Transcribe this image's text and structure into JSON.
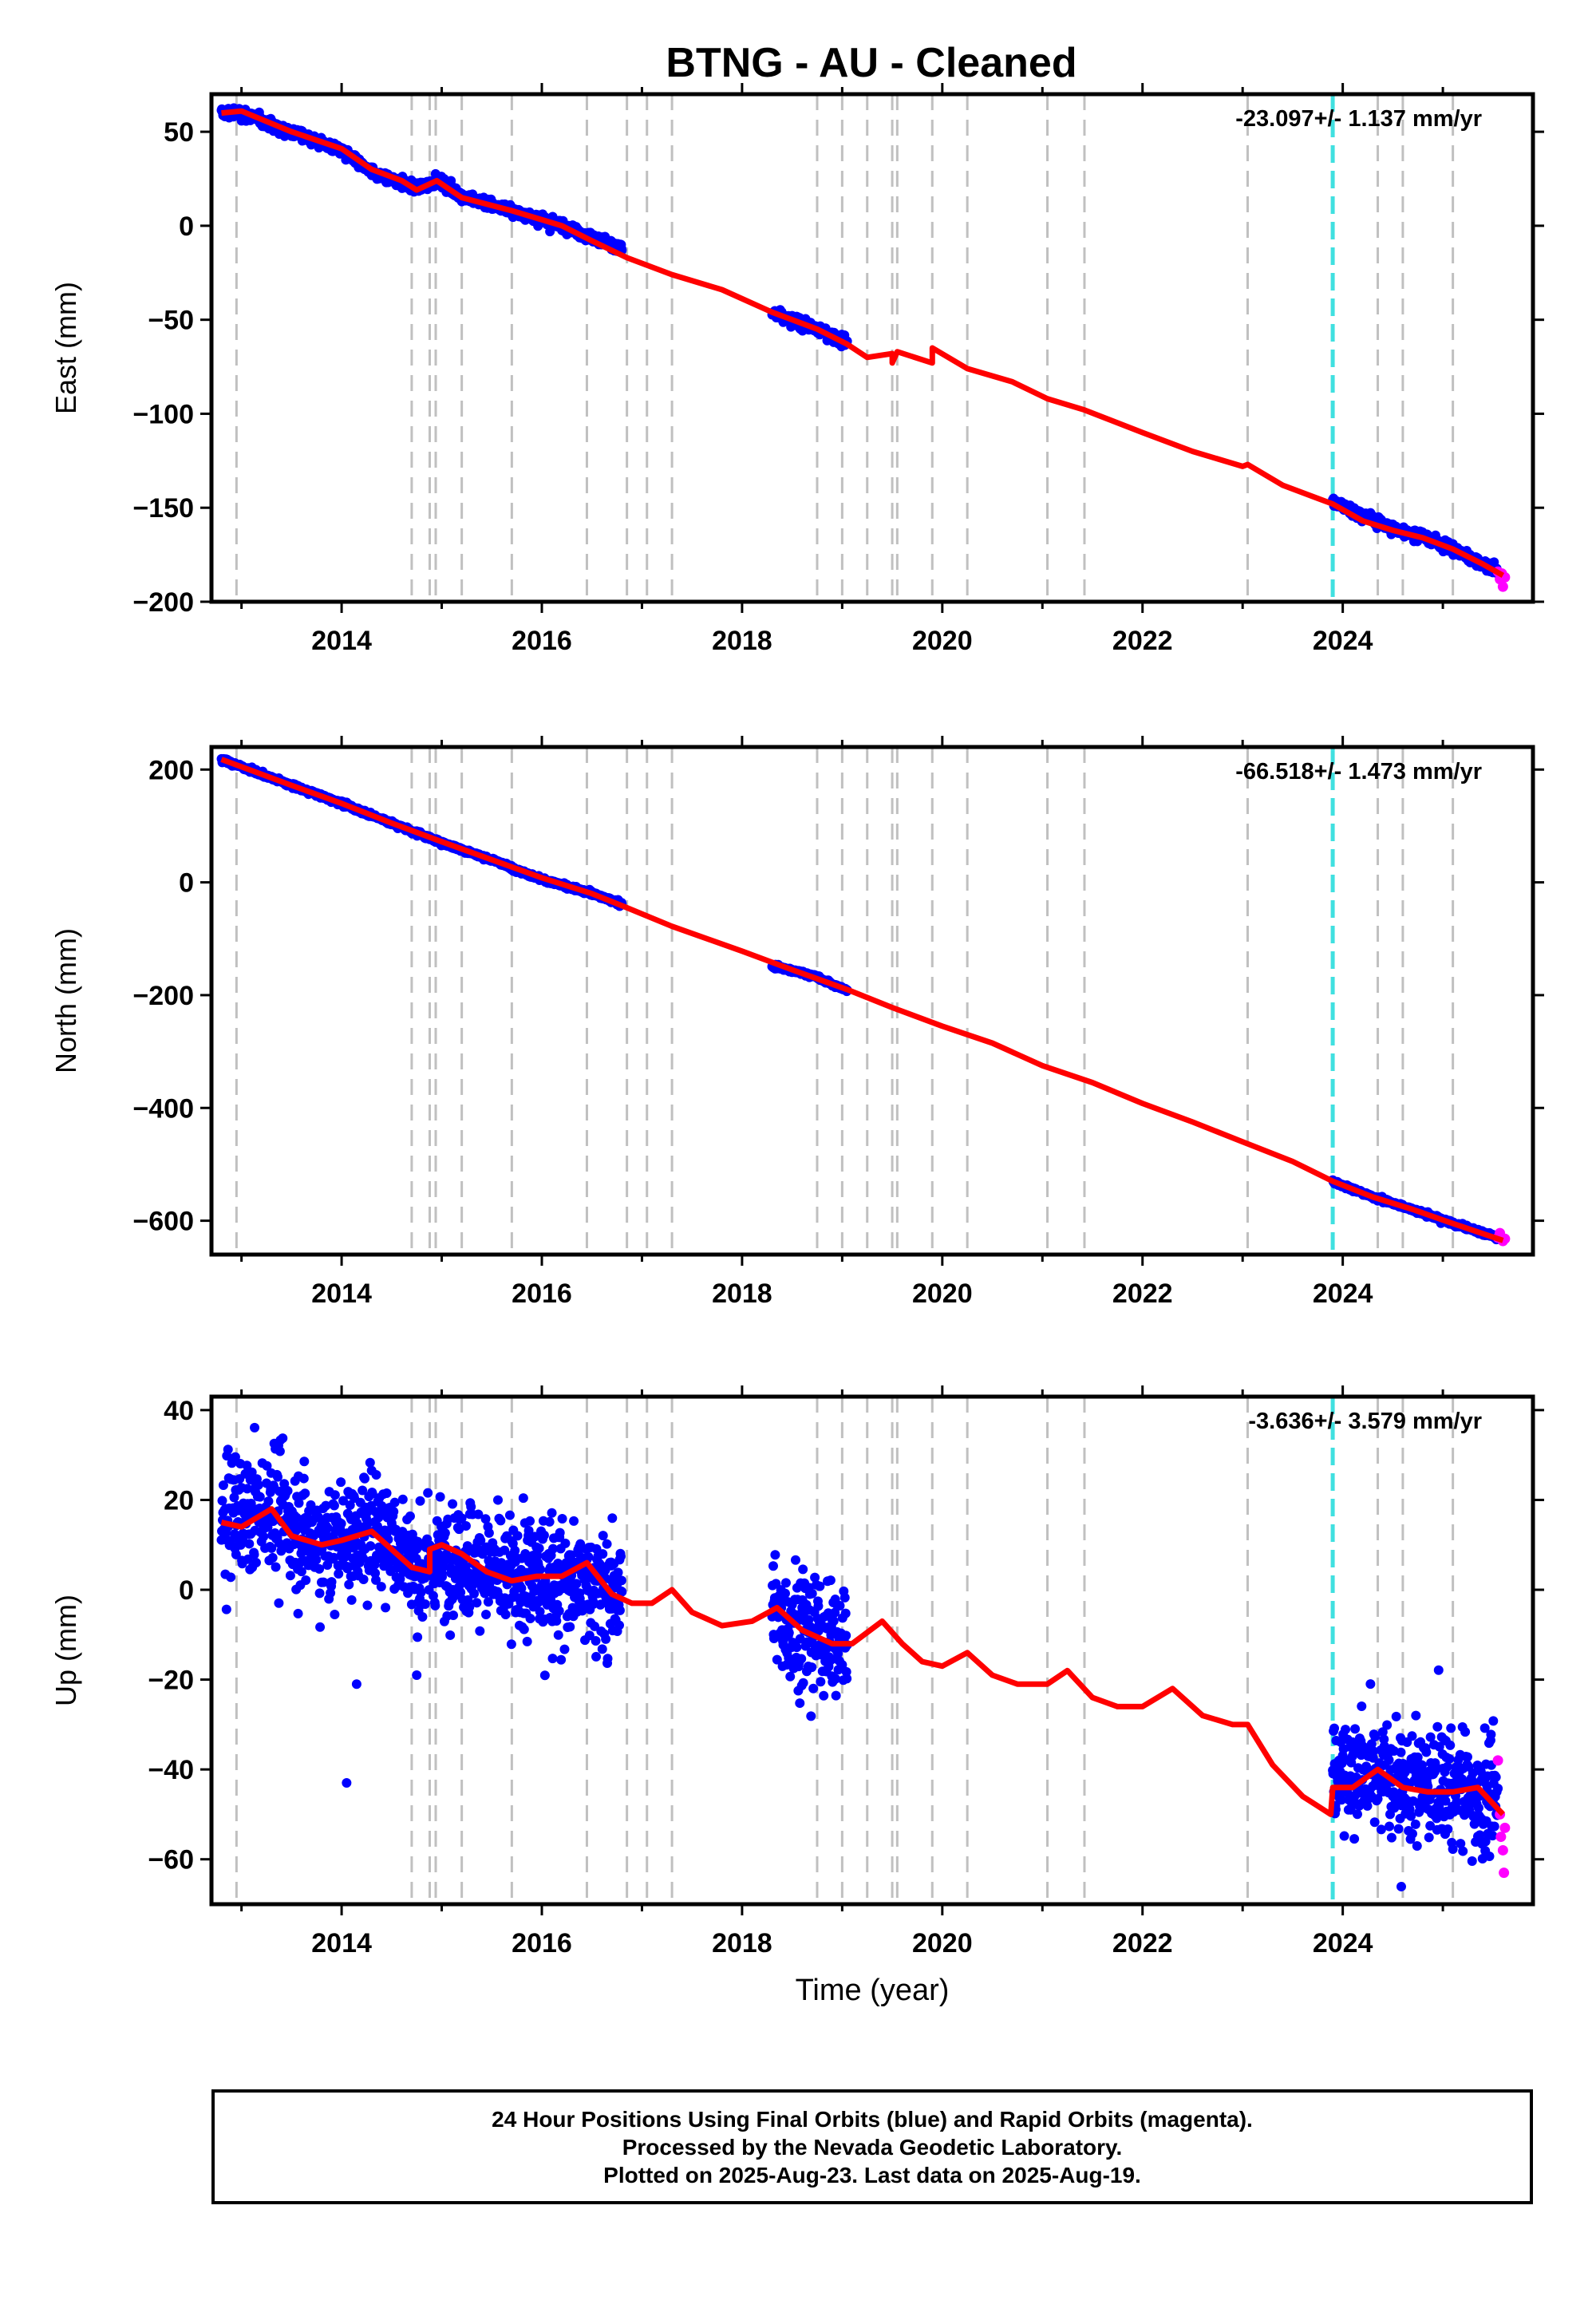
{
  "title": "BTNG  - AU - Cleaned",
  "footer": {
    "line1": "24 Hour Positions Using Final Orbits (blue) and Rapid Orbits (magenta).",
    "line2": "Processed by the Nevada Geodetic Laboratory.",
    "line3": "Plotted on 2025-Aug-23. Last data on 2025-Aug-19."
  },
  "colors": {
    "final_orbits": "#0000ff",
    "rapid_orbits": "#ff00ff",
    "model": "#ff0000",
    "event_lines": "#c0c0c0",
    "antenna_change": "#40e0e0"
  },
  "chart_data": [
    {
      "type": "scatter",
      "component": "East",
      "ylabel": "East (mm)",
      "xlabel": "",
      "rate_label": "-23.097+/- 1.137 mm/yr",
      "xlim": [
        2012.7,
        2025.9
      ],
      "ylim": [
        -200,
        70
      ],
      "xticks": [
        2014,
        2016,
        2018,
        2020,
        2022,
        2024
      ],
      "yticks": [
        50,
        0,
        -50,
        -100,
        -150,
        -200
      ],
      "ytick_labels": [
        "50",
        "0",
        "−50",
        "−100",
        "−150",
        "−200"
      ],
      "event_lines": [
        2012.95,
        2014.7,
        2014.88,
        2014.94,
        2015.2,
        2015.7,
        2016.45,
        2016.85,
        2017.05,
        2017.3,
        2018.75,
        2019.0,
        2019.25,
        2019.5,
        2019.55,
        2019.9,
        2020.25,
        2021.05,
        2021.42,
        2023.05,
        2024.35,
        2024.6,
        2025.1
      ],
      "antenna_change": 2023.9,
      "noise": 3,
      "final_segments": [
        {
          "x": [
            2012.8,
            2013.0,
            2013.5,
            2014.0,
            2014.3,
            2014.75,
            2014.95,
            2015.2,
            2015.7,
            2016.2,
            2016.8
          ],
          "y": [
            60,
            60,
            50,
            40,
            28,
            20,
            24,
            16,
            8,
            0,
            -12
          ]
        },
        {
          "x": [
            2018.3,
            2018.7,
            2019.05
          ],
          "y": [
            -47,
            -54,
            -62
          ]
        },
        {
          "x": [
            2023.9,
            2024.2,
            2024.5,
            2024.8,
            2025.1,
            2025.4,
            2025.55
          ],
          "y": [
            -147,
            -154,
            -161,
            -165,
            -172,
            -180,
            -183
          ]
        }
      ],
      "rapid_points": {
        "x": [
          2025.55,
          2025.57,
          2025.59,
          2025.6,
          2025.62
        ],
        "y": [
          -184,
          -188,
          -185,
          -192,
          -187
        ]
      },
      "model": {
        "x": [
          2012.8,
          2013.0,
          2013.5,
          2014.0,
          2014.3,
          2014.6,
          2014.75,
          2014.95,
          2015.2,
          2015.7,
          2016.2,
          2016.5,
          2016.85,
          2017.3,
          2017.8,
          2018.3,
          2018.75,
          2019.05,
          2019.25,
          2019.5,
          2019.5,
          2019.55,
          2019.9,
          2019.9,
          2020.25,
          2020.7,
          2021.05,
          2021.42,
          2022.0,
          2022.5,
          2023.0,
          2023.05,
          2023.4,
          2023.9,
          2024.2,
          2024.5,
          2024.8,
          2025.1,
          2025.4,
          2025.6
        ],
        "y": [
          60,
          61,
          50,
          41,
          30,
          24,
          19,
          24,
          15,
          8,
          0,
          -8,
          -17,
          -26,
          -34,
          -46,
          -55,
          -63,
          -70,
          -68,
          -73,
          -67,
          -73,
          -65,
          -76,
          -83,
          -92,
          -98,
          -110,
          -120,
          -128,
          -127,
          -138,
          -148,
          -157,
          -162,
          -166,
          -172,
          -180,
          -186
        ]
      }
    },
    {
      "type": "scatter",
      "component": "North",
      "ylabel": "North (mm)",
      "xlabel": "",
      "rate_label": "-66.518+/- 1.473 mm/yr",
      "xlim": [
        2012.7,
        2025.9
      ],
      "ylim": [
        -660,
        240
      ],
      "xticks": [
        2014,
        2016,
        2018,
        2020,
        2022,
        2024
      ],
      "yticks": [
        200,
        0,
        -200,
        -400,
        -600
      ],
      "ytick_labels": [
        "200",
        "0",
        "−200",
        "−400",
        "−600"
      ],
      "event_lines": [
        2012.95,
        2014.7,
        2014.88,
        2014.94,
        2015.2,
        2015.7,
        2016.45,
        2016.85,
        2017.05,
        2017.3,
        2018.75,
        2019.0,
        2019.25,
        2019.5,
        2019.55,
        2019.9,
        2020.25,
        2021.05,
        2021.42,
        2023.05,
        2024.35,
        2024.6,
        2025.1
      ],
      "antenna_change": 2023.9,
      "noise": 4,
      "final_segments": [
        {
          "x": [
            2012.8,
            2013.5,
            2014.0,
            2014.5,
            2015.0,
            2015.5,
            2016.0,
            2016.5,
            2016.8
          ],
          "y": [
            218,
            172,
            140,
            105,
            70,
            40,
            5,
            -20,
            -38
          ]
        },
        {
          "x": [
            2018.3,
            2018.7,
            2019.05
          ],
          "y": [
            -148,
            -165,
            -192
          ]
        },
        {
          "x": [
            2023.9,
            2024.3,
            2024.7,
            2025.1,
            2025.55
          ],
          "y": [
            -530,
            -558,
            -580,
            -605,
            -630
          ]
        }
      ],
      "rapid_points": {
        "x": [
          2025.55,
          2025.57,
          2025.6,
          2025.62
        ],
        "y": [
          -630,
          -622,
          -636,
          -632
        ]
      },
      "model": {
        "x": [
          2012.8,
          2013.5,
          2014.0,
          2014.5,
          2015.0,
          2015.5,
          2016.0,
          2016.5,
          2016.85,
          2017.3,
          2018.0,
          2018.5,
          2019.05,
          2019.5,
          2020.0,
          2020.5,
          2021.0,
          2021.5,
          2022.0,
          2022.5,
          2023.0,
          2023.5,
          2023.9,
          2024.3,
          2024.7,
          2025.1,
          2025.6
        ],
        "y": [
          218,
          172,
          140,
          105,
          72,
          40,
          8,
          -20,
          -45,
          -78,
          -122,
          -155,
          -190,
          -222,
          -255,
          -285,
          -325,
          -355,
          -392,
          -425,
          -460,
          -495,
          -530,
          -558,
          -580,
          -605,
          -635
        ]
      }
    },
    {
      "type": "scatter",
      "component": "Up",
      "ylabel": "Up (mm)",
      "xlabel": "Time (year)",
      "rate_label": "-3.636+/- 3.579 mm/yr",
      "xlim": [
        2012.7,
        2025.9
      ],
      "ylim": [
        -70,
        43
      ],
      "xticks": [
        2014,
        2016,
        2018,
        2020,
        2022,
        2024
      ],
      "yticks": [
        40,
        20,
        0,
        -20,
        -40,
        -60
      ],
      "ytick_labels": [
        "40",
        "20",
        "0",
        "−20",
        "−40",
        "−60"
      ],
      "event_lines": [
        2012.95,
        2014.7,
        2014.88,
        2014.94,
        2015.2,
        2015.7,
        2016.45,
        2016.85,
        2017.05,
        2017.3,
        2018.75,
        2019.0,
        2019.25,
        2019.5,
        2019.55,
        2019.9,
        2020.25,
        2021.05,
        2021.42,
        2023.05,
        2024.35,
        2024.6,
        2025.1
      ],
      "antenna_change": 2023.9,
      "noise": 14,
      "final_segments": [
        {
          "x": [
            2012.8,
            2013.3,
            2013.8,
            2014.4,
            2014.75,
            2015.2,
            2015.6,
            2016.1,
            2016.8
          ],
          "y": [
            15,
            18,
            10,
            14,
            5,
            8,
            2,
            3,
            0
          ]
        },
        {
          "x": [
            2018.3,
            2018.7,
            2019.05
          ],
          "y": [
            -5,
            -10,
            -12
          ]
        },
        {
          "x": [
            2023.9,
            2024.3,
            2024.7,
            2025.1,
            2025.55
          ],
          "y": [
            -40,
            -41,
            -44,
            -44,
            -48
          ]
        }
      ],
      "rapid_points": {
        "x": [
          2025.55,
          2025.57,
          2025.58,
          2025.6,
          2025.61,
          2025.62
        ],
        "y": [
          -38,
          -50,
          -55,
          -58,
          -63,
          -53
        ]
      },
      "outliers": {
        "x": [
          2014.05,
          2014.15,
          2014.75
        ],
        "y": [
          -43,
          -21,
          -19
        ]
      },
      "model": {
        "x": [
          2012.8,
          2013.0,
          2013.3,
          2013.5,
          2013.8,
          2014.0,
          2014.3,
          2014.5,
          2014.7,
          2014.88,
          2014.88,
          2015.0,
          2015.2,
          2015.45,
          2015.7,
          2015.95,
          2016.2,
          2016.45,
          2016.7,
          2016.9,
          2017.1,
          2017.3,
          2017.5,
          2017.8,
          2018.1,
          2018.35,
          2018.6,
          2018.9,
          2019.1,
          2019.4,
          2019.6,
          2019.8,
          2020.0,
          2020.25,
          2020.5,
          2020.75,
          2021.05,
          2021.25,
          2021.5,
          2021.75,
          2022.0,
          2022.3,
          2022.6,
          2022.9,
          2023.05,
          2023.3,
          2023.6,
          2023.88,
          2023.9,
          2024.1,
          2024.35,
          2024.6,
          2024.85,
          2025.1,
          2025.35,
          2025.6
        ],
        "y": [
          15,
          14,
          18,
          12,
          10,
          11,
          13,
          9,
          5,
          4,
          9,
          10,
          8,
          4,
          2,
          3,
          3,
          6,
          -1,
          -3,
          -3,
          0,
          -5,
          -8,
          -7,
          -4,
          -9,
          -12,
          -12,
          -7,
          -12,
          -16,
          -17,
          -14,
          -19,
          -21,
          -21,
          -18,
          -24,
          -26,
          -26,
          -22,
          -28,
          -30,
          -30,
          -39,
          -46,
          -50,
          -44,
          -44,
          -40,
          -44,
          -45,
          -45,
          -44,
          -50
        ]
      }
    }
  ]
}
